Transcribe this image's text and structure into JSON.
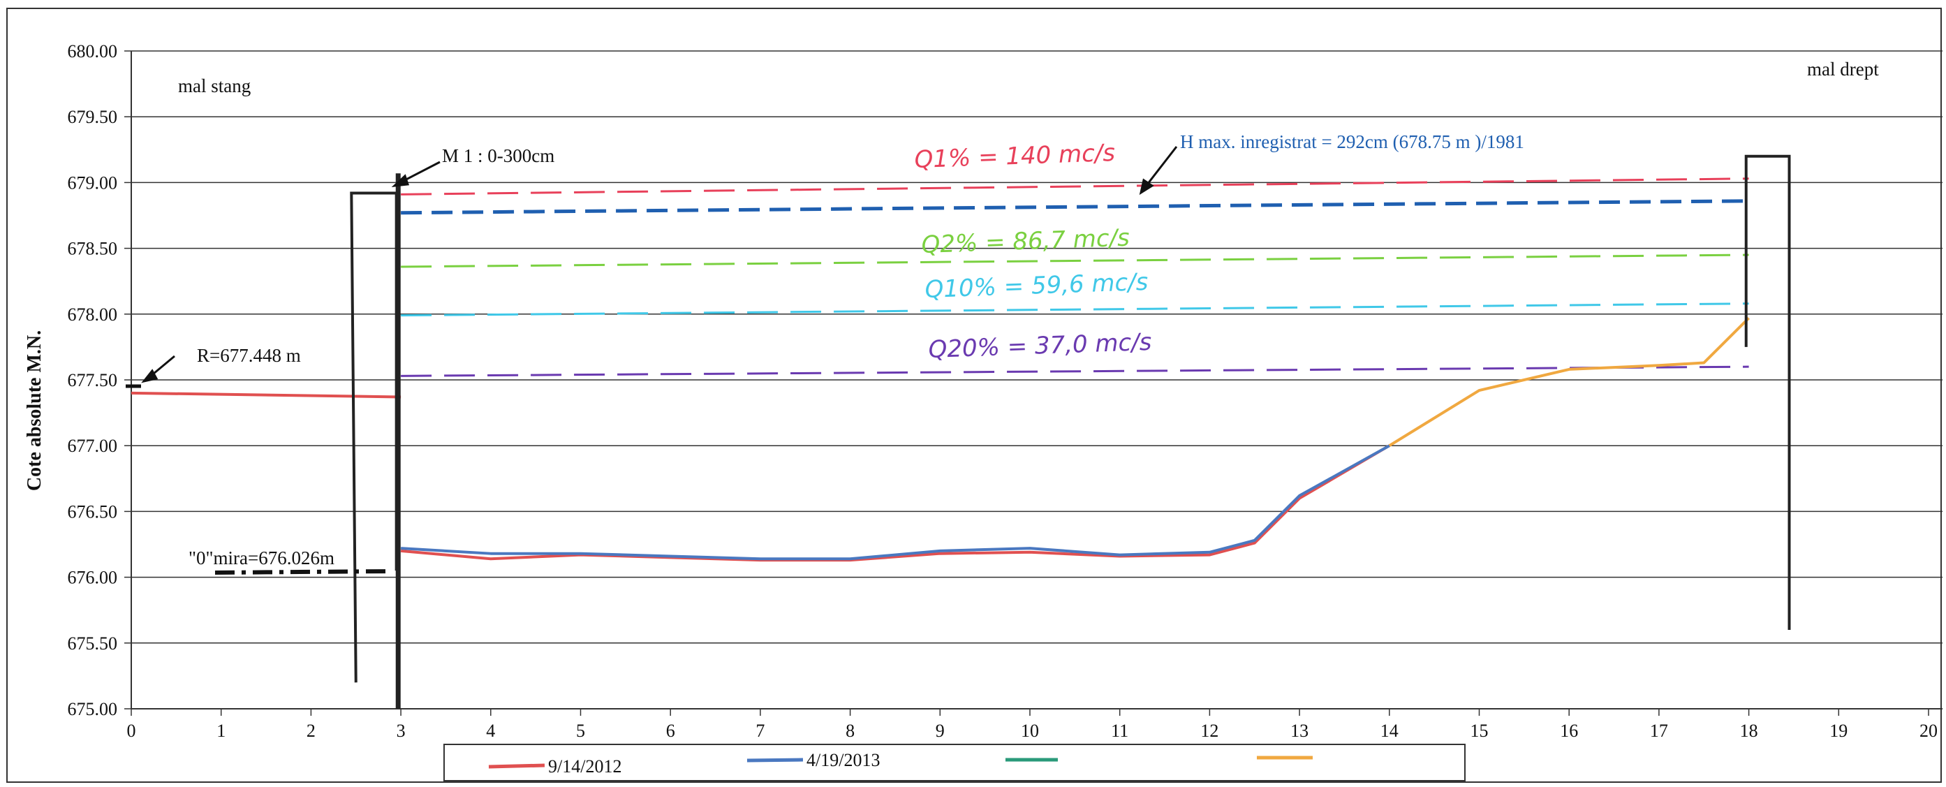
{
  "chart_data": {
    "type": "line",
    "title": "",
    "ylabel": "Cote absolute M.N.",
    "xlabel": "",
    "xlim": [
      0,
      20
    ],
    "ylim": [
      675.0,
      680.0
    ],
    "x_ticks": [
      "0",
      "1",
      "2",
      "3",
      "4",
      "5",
      "6",
      "7",
      "8",
      "9",
      "10",
      "11",
      "12",
      "13",
      "14",
      "15",
      "16",
      "17",
      "18",
      "19",
      "20"
    ],
    "y_ticks": [
      "675.00",
      "675.50",
      "676.00",
      "676.50",
      "677.00",
      "677.50",
      "678.00",
      "678.50",
      "679.00",
      "679.50",
      "680.00"
    ],
    "grid": "horizontal",
    "series": [
      {
        "name": "9/14/2012",
        "color": "#e05050",
        "x": [
          3,
          4,
          5,
          6,
          7,
          8,
          9,
          10,
          11,
          12,
          12.5,
          13,
          14
        ],
        "y": [
          676.2,
          676.14,
          676.17,
          676.15,
          676.13,
          676.13,
          676.18,
          676.19,
          676.16,
          676.17,
          676.26,
          676.6,
          677.0
        ]
      },
      {
        "name": "4/19/2013",
        "color": "#4a78c0",
        "x": [
          3,
          4,
          5,
          6,
          7,
          8,
          9,
          10,
          11,
          12,
          12.5,
          13,
          14
        ],
        "y": [
          676.22,
          676.18,
          676.18,
          676.16,
          676.14,
          676.14,
          676.2,
          676.22,
          676.17,
          676.19,
          676.28,
          676.62,
          677.0
        ]
      },
      {
        "name": "",
        "color": "#2a9a7a",
        "x": [],
        "y": []
      },
      {
        "name": "",
        "color": "#f0a840",
        "x": [
          14,
          15,
          16,
          17,
          17.5,
          18
        ],
        "y": [
          677.0,
          677.42,
          677.58,
          677.61,
          677.63,
          677.97
        ]
      }
    ],
    "bank_left": {
      "name": "",
      "color": "#e05050",
      "x": [
        0,
        3
      ],
      "y": [
        677.4,
        677.37
      ]
    },
    "levels": [
      {
        "label": "Q1% = 140 mc/s",
        "color": "#e8405a",
        "y0": 678.91,
        "y1": 679.03
      },
      {
        "label": "H max. inregistrat = 292cm (678.75 m )/1981",
        "color": "#1f5fb0",
        "y0": 678.77,
        "y1": 678.86
      },
      {
        "label": "Q2% = 86,7 mc/s",
        "color": "#7ad040",
        "y0": 678.36,
        "y1": 678.45
      },
      {
        "label": "Q10% = 59,6 mc/s",
        "color": "#40c8e8",
        "y0": 677.99,
        "y1": 678.08
      },
      {
        "label": "Q20% = 37,0 mc/s",
        "color": "#6a3ab0",
        "y0": 677.53,
        "y1": 677.6
      }
    ],
    "annotations": {
      "mal_stang": "mal stang",
      "mal_drept": "mal drept",
      "scale_note": "M 1 : 0-300cm",
      "reference": "R=677.448 m",
      "zero_mira": "\"0\"mira=676.026m",
      "hmax": "H max. inregistrat = 292cm (678.75 m )/1981",
      "q1": "Q1% = 140 mc/s",
      "q2": "Q2% = 86,7 mc/s",
      "q10": "Q10% = 59,6 mc/s",
      "q20": "Q20% = 37,0 mc/s"
    },
    "legend_position": "bottom"
  }
}
